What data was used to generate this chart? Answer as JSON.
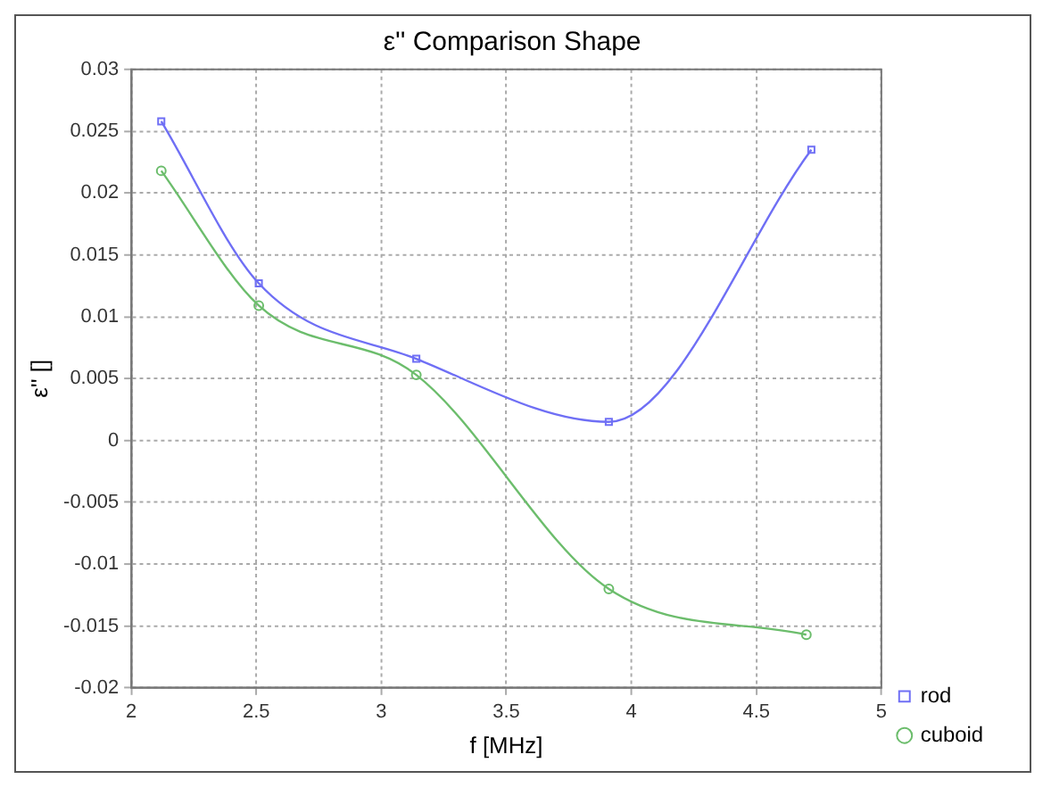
{
  "chart_data": {
    "type": "line",
    "title": "ε'' Comparison Shape",
    "xlabel": "f [MHz]",
    "ylabel": "ε'' []",
    "xlim": [
      2,
      5
    ],
    "xticks": [
      2,
      2.5,
      3,
      3.5,
      4,
      4.5,
      5
    ],
    "ylim": [
      -0.02,
      0.03
    ],
    "yticks": [
      -0.02,
      -0.015,
      -0.01,
      -0.005,
      0,
      0.005,
      0.01,
      0.015,
      0.02,
      0.025,
      0.03
    ],
    "grid": true,
    "legend": "bottom right",
    "series": [
      {
        "name": "rod",
        "color": "#6f6ff5",
        "marker": "square",
        "x": [
          2.12,
          2.51,
          3.14,
          3.91,
          4.72
        ],
        "values": [
          0.0258,
          0.0127,
          0.0066,
          0.0015,
          0.0235
        ]
      },
      {
        "name": "cuboid",
        "color": "#6cbd6c",
        "marker": "circle",
        "x": [
          2.12,
          2.51,
          3.14,
          3.91,
          4.7
        ],
        "values": [
          0.0218,
          0.0109,
          0.0053,
          -0.012,
          -0.0157
        ]
      }
    ]
  }
}
